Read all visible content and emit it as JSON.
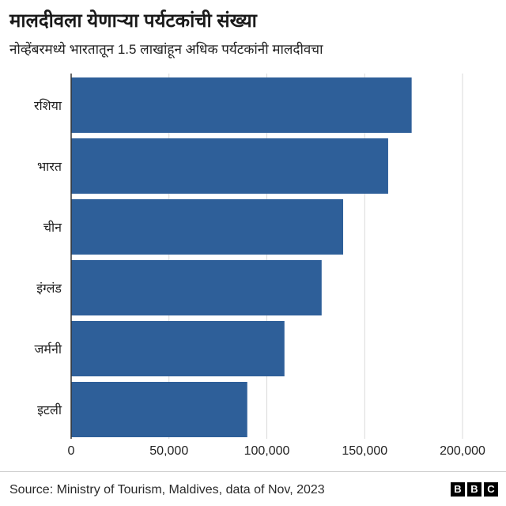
{
  "chart_data": {
    "type": "bar",
    "orientation": "horizontal",
    "title": "मालदीवला येणाऱ्या पर्यटकांची संख्या",
    "subtitle": "नोव्हेंबरमध्ये भारतातून 1.5 लाखांहून अधिक पर्यटकांनी मालदीवचा",
    "categories": [
      "रशिया",
      "भारत",
      "चीन",
      "इंग्लंड",
      "जर्मनी",
      "इटली"
    ],
    "values": [
      174000,
      162000,
      139000,
      128000,
      109000,
      90000
    ],
    "xlabel": "",
    "ylabel": "",
    "xlim": [
      0,
      200000
    ],
    "xticks": [
      0,
      50000,
      100000,
      150000,
      200000
    ],
    "xtick_labels": [
      "0",
      "50,000",
      "100,000",
      "150,000",
      "200,000"
    ],
    "grid": true,
    "legend": "none",
    "color": "#2e5f99"
  },
  "footer": {
    "source": "Source: Ministry of Tourism, Maldives, data of Nov, 2023",
    "logo_letters": [
      "B",
      "B",
      "C"
    ]
  },
  "colors": {
    "gridline": "#d9d9d9",
    "axis": "#333333"
  }
}
